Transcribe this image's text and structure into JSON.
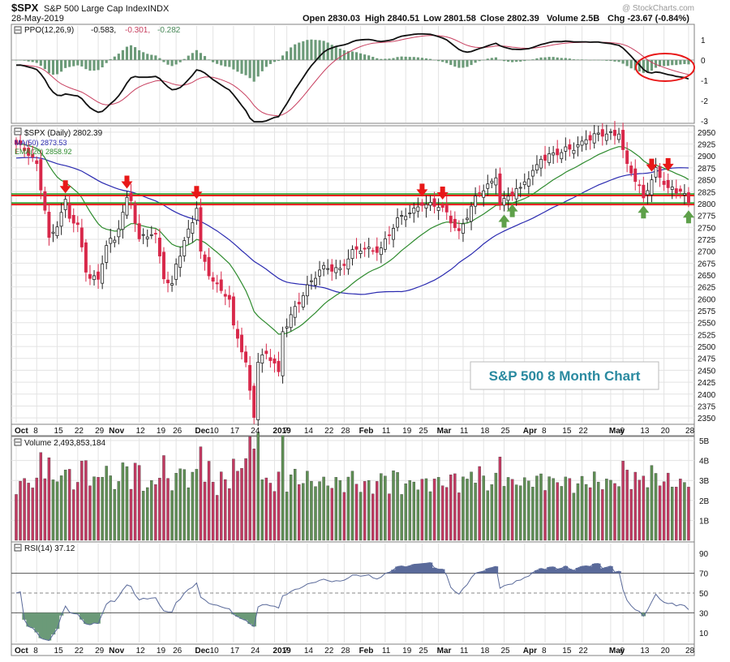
{
  "header": {
    "symbol": "$SPX",
    "name": "S&P 500 Large Cap Index",
    "exchange": "INDX",
    "date": "28-May-2019",
    "watermark": "@ StockCharts.com",
    "open": "Open 2830.03",
    "high": "High 2840.51",
    "low": "Low 2801.58",
    "close": "Close 2802.39",
    "volume": "Volume 2.5B",
    "change": "Chg -23.67 (-0.84%)"
  },
  "colors": {
    "up": "#6a9a5a",
    "down": "#d8284a",
    "arrow_red": "#e81818",
    "arrow_green": "#5ea04a",
    "ma50": "#2a2ab0",
    "ema20": "#2e8b2e",
    "support_red": "#e81818",
    "support_green": "#1a9a1a",
    "volume_up": "#5f8f55",
    "volume_down": "#c23a62",
    "ppo_line": "#111111",
    "ppo_signal": "#c84060",
    "ppo_hist": "#6b9a78",
    "rsi_line": "#5a6a9a",
    "callout_text": "#2a8aa0"
  },
  "callout": "S&P 500 8 Month Chart",
  "ppo": {
    "label": "PPO(12,26,9)",
    "value": "-0.583,",
    "signal": "-0.301,",
    "histogram": "-0.282",
    "ticks": [
      "1",
      "0",
      "-1",
      "-2",
      "-3"
    ]
  },
  "price": {
    "label": "$SPX (Daily) 2802.39",
    "ma_label": "MA(50) 2873.53",
    "ema_label": "EMA(20) 2858.92",
    "ticks": [
      "2950",
      "2925",
      "2900",
      "2875",
      "2850",
      "2825",
      "2800",
      "2775",
      "2750",
      "2725",
      "2700",
      "2675",
      "2650",
      "2625",
      "2600",
      "2575",
      "2550",
      "2525",
      "2500",
      "2475",
      "2450",
      "2425",
      "2400",
      "2375",
      "2350"
    ]
  },
  "volume": {
    "label": "Volume 2,493,853,184",
    "ticks": [
      "5B",
      "4B",
      "3B",
      "2B",
      "1B"
    ]
  },
  "rsi": {
    "label": "RSI(14) 37.12",
    "ticks": [
      "90",
      "70",
      "50",
      "30",
      "10"
    ]
  },
  "dates": [
    "Oct",
    "8",
    "15",
    "22",
    "29",
    "Nov",
    "12",
    "19",
    "26",
    "Dec",
    "10",
    "17",
    "24",
    "2019",
    "7",
    "14",
    "22",
    "28",
    "Feb",
    "11",
    "19",
    "25",
    "Mar",
    "11",
    "18",
    "25",
    "Apr",
    "8",
    "15",
    "22",
    "May",
    "6",
    "13",
    "20",
    "28"
  ],
  "chart_data": {
    "type": "candlestick",
    "title": "$SPX (Daily) 2802.39",
    "x_range": [
      "2018-10-01",
      "2019-05-28"
    ],
    "ylim": [
      2340,
      2960
    ],
    "support_levels": [
      2817,
      2798
    ],
    "close_keyframes": [
      [
        "2018-10-01",
        2925
      ],
      [
        "2018-10-04",
        2901
      ],
      [
        "2018-10-08",
        2884
      ],
      [
        "2018-10-10",
        2786
      ],
      [
        "2018-10-11",
        2729
      ],
      [
        "2018-10-15",
        2751
      ],
      [
        "2018-10-17",
        2809
      ],
      [
        "2018-10-18",
        2769
      ],
      [
        "2018-10-22",
        2756
      ],
      [
        "2018-10-24",
        2656
      ],
      [
        "2018-10-29",
        2641
      ],
      [
        "2018-10-31",
        2712
      ],
      [
        "2018-11-02",
        2723
      ],
      [
        "2018-11-07",
        2813
      ],
      [
        "2018-11-08",
        2806
      ],
      [
        "2018-11-12",
        2726
      ],
      [
        "2018-11-16",
        2736
      ],
      [
        "2018-11-20",
        2642
      ],
      [
        "2018-11-23",
        2632
      ],
      [
        "2018-11-26",
        2673
      ],
      [
        "2018-11-30",
        2760
      ],
      [
        "2018-12-03",
        2790
      ],
      [
        "2018-12-04",
        2700
      ],
      [
        "2018-12-10",
        2637
      ],
      [
        "2018-12-14",
        2599
      ],
      [
        "2018-12-17",
        2545
      ],
      [
        "2018-12-20",
        2467
      ],
      [
        "2018-12-24",
        2351
      ],
      [
        "2018-12-26",
        2467
      ],
      [
        "2018-12-28",
        2485
      ],
      [
        "2019-01-03",
        2447
      ],
      [
        "2019-01-04",
        2531
      ],
      [
        "2019-01-09",
        2584
      ],
      [
        "2019-01-18",
        2670
      ],
      [
        "2019-01-25",
        2664
      ],
      [
        "2019-01-31",
        2704
      ],
      [
        "2019-02-08",
        2707
      ],
      [
        "2019-02-15",
        2775
      ],
      [
        "2019-02-22",
        2793
      ],
      [
        "2019-02-25",
        2796
      ],
      [
        "2019-03-04",
        2792
      ],
      [
        "2019-03-08",
        2743
      ],
      [
        "2019-03-15",
        2822
      ],
      [
        "2019-03-21",
        2854
      ],
      [
        "2019-03-22",
        2800
      ],
      [
        "2019-03-29",
        2834
      ],
      [
        "2019-04-05",
        2893
      ],
      [
        "2019-04-12",
        2907
      ],
      [
        "2019-04-23",
        2934
      ],
      [
        "2019-04-30",
        2946
      ],
      [
        "2019-05-03",
        2946
      ],
      [
        "2019-05-07",
        2884
      ],
      [
        "2019-05-13",
        2812
      ],
      [
        "2019-05-15",
        2850
      ],
      [
        "2019-05-16",
        2876
      ],
      [
        "2019-05-20",
        2840
      ],
      [
        "2019-05-23",
        2822
      ],
      [
        "2019-05-24",
        2826
      ],
      [
        "2019-05-28",
        2802
      ]
    ],
    "markers": {
      "resistance_arrows": [
        "2018-10-17",
        "2018-11-07",
        "2018-12-03",
        "2019-02-25",
        "2019-03-04",
        "2019-05-15",
        "2019-05-21"
      ],
      "support_arrows": [
        "2019-03-25",
        "2019-03-27",
        "2019-05-13",
        "2019-05-28"
      ]
    },
    "indicators": [
      "MA(50)",
      "EMA(20)",
      "PPO(12,26,9)",
      "RSI(14)",
      "Volume"
    ]
  }
}
